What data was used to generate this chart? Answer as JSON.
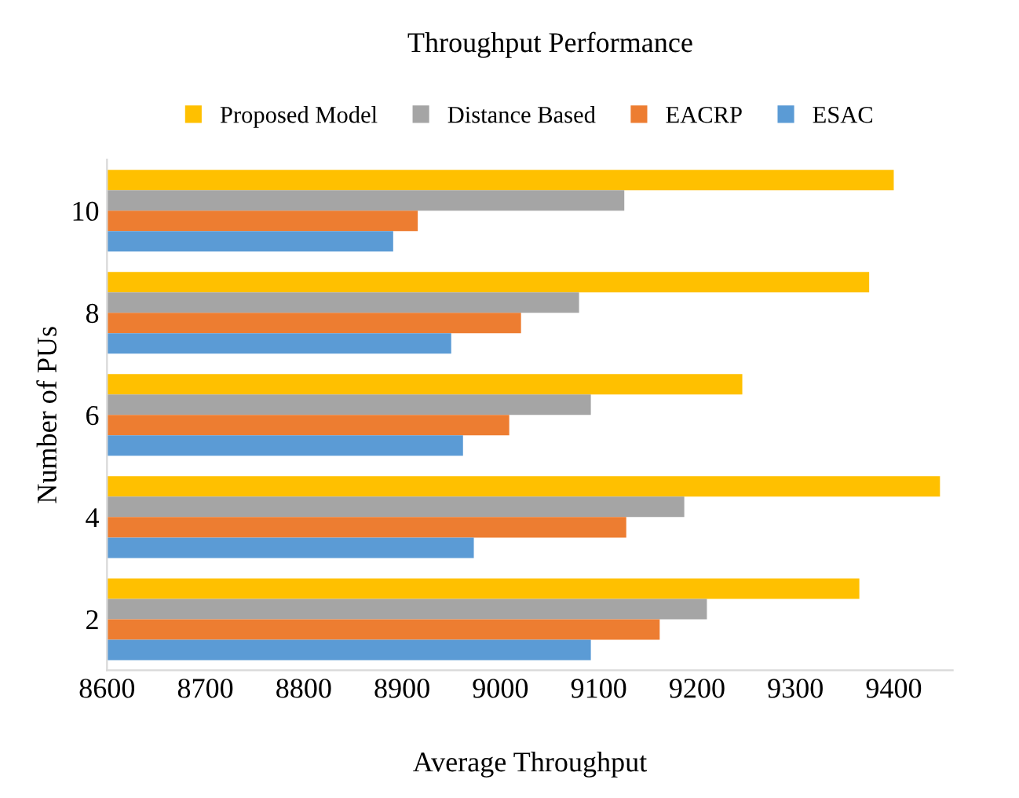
{
  "chart_data": {
    "type": "bar",
    "orientation": "horizontal",
    "title": "Throughput Performance",
    "xlabel": "Average Throughput",
    "ylabel": "Number of PUs",
    "categories": [
      "10",
      "8",
      "6",
      "4",
      "2"
    ],
    "series": [
      {
        "name": "Proposed Model",
        "color": "#ffc000",
        "values": [
          9400,
          9375,
          9246,
          9447,
          9365
        ]
      },
      {
        "name": "Distance Based",
        "color": "#a5a5a5",
        "values": [
          9126,
          9080,
          9092,
          9187,
          9210
        ]
      },
      {
        "name": "EACRP",
        "color": "#ed7d31",
        "values": [
          8916,
          9021,
          9009,
          9128,
          9162
        ]
      },
      {
        "name": "ESAC",
        "color": "#5b9bd5",
        "values": [
          8891,
          8950,
          8962,
          8973,
          9092
        ]
      }
    ],
    "xlim": [
      8600,
      9460
    ],
    "xticks": [
      8600,
      8700,
      8800,
      8900,
      9000,
      9100,
      9200,
      9300,
      9400
    ],
    "grid": false,
    "legend": "top"
  }
}
